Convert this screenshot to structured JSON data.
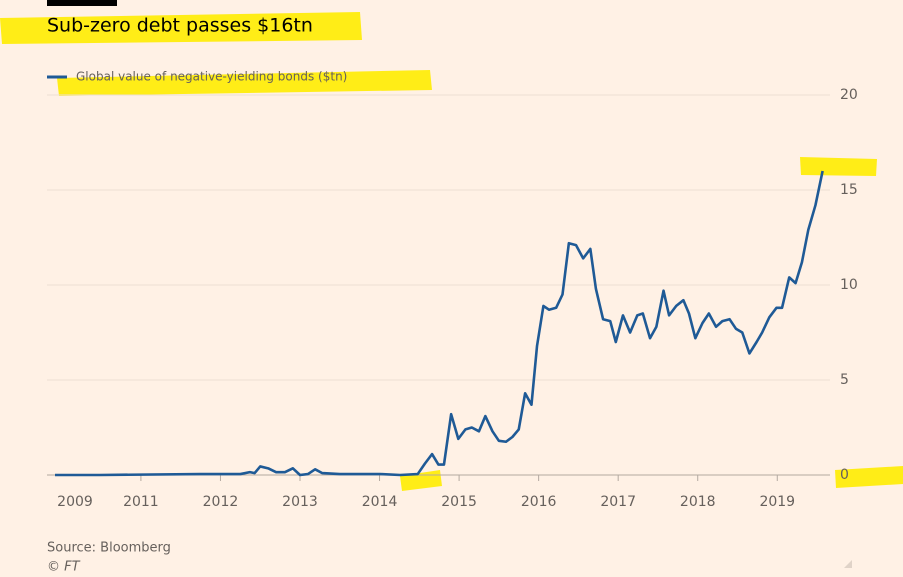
{
  "chart_data": {
    "type": "line",
    "title": "Sub-zero debt passes $16tn",
    "source": "Source: Bloomberg",
    "credit": "© FT",
    "series": [
      {
        "name": "Global value of negative-yielding bonds ($tn)",
        "color": "#1f5a96",
        "x": [
          2009.92,
          2010.48,
          2011.74,
          2012.25,
          2012.37,
          2012.43,
          2012.5,
          2012.6,
          2012.7,
          2012.81,
          2012.91,
          2013.0,
          2013.1,
          2013.19,
          2013.28,
          2013.5,
          2014.01,
          2014.26,
          2014.48,
          2014.57,
          2014.66,
          2014.74,
          2014.81,
          2014.9,
          2014.99,
          2015.08,
          2015.16,
          2015.25,
          2015.33,
          2015.42,
          2015.5,
          2015.59,
          2015.67,
          2015.75,
          2015.83,
          2015.91,
          2015.98,
          2016.06,
          2016.13,
          2016.22,
          2016.3,
          2016.38,
          2016.47,
          2016.56,
          2016.65,
          2016.72,
          2016.81,
          2016.9,
          2016.97,
          2017.06,
          2017.15,
          2017.24,
          2017.31,
          2017.4,
          2017.48,
          2017.57,
          2017.64,
          2017.73,
          2017.82,
          2017.89,
          2017.97,
          2018.06,
          2018.14,
          2018.23,
          2018.31,
          2018.4,
          2018.48,
          2018.56,
          2018.65,
          2018.74,
          2018.81,
          2018.9,
          2018.99,
          2019.06,
          2019.15,
          2019.23,
          2019.31,
          2019.39,
          2019.48,
          2019.57
        ],
        "values": [
          0,
          0,
          0.05,
          0.05,
          0.15,
          0.1,
          0.45,
          0.35,
          0.15,
          0.15,
          0.35,
          0,
          0.05,
          0.3,
          0.1,
          0.05,
          0.05,
          0,
          0.05,
          0.6,
          1.1,
          0.55,
          0.55,
          3.2,
          1.9,
          2.4,
          2.5,
          2.3,
          3.1,
          2.3,
          1.8,
          1.75,
          2.0,
          2.4,
          4.3,
          3.7,
          6.8,
          8.9,
          8.7,
          8.8,
          9.5,
          12.2,
          12.1,
          11.4,
          11.9,
          9.8,
          8.2,
          8.1,
          7.0,
          8.4,
          7.5,
          8.4,
          8.5,
          7.2,
          7.8,
          9.7,
          8.4,
          8.9,
          9.2,
          8.5,
          7.2,
          8.0,
          8.5,
          7.8,
          8.1,
          8.2,
          7.7,
          7.5,
          6.4,
          7.0,
          7.5,
          8.3,
          8.8,
          8.8,
          10.4,
          10.1,
          11.2,
          12.9,
          14.2,
          16.0
        ]
      }
    ],
    "xlim": [
      2009.92,
      2019.6
    ],
    "xticks": [
      2009,
      2011,
      2012,
      2013,
      2014,
      2015,
      2016,
      2017,
      2018,
      2019
    ],
    "ylim": [
      0,
      20
    ],
    "yticks": [
      0,
      5,
      10,
      15,
      20
    ],
    "grid": true
  }
}
